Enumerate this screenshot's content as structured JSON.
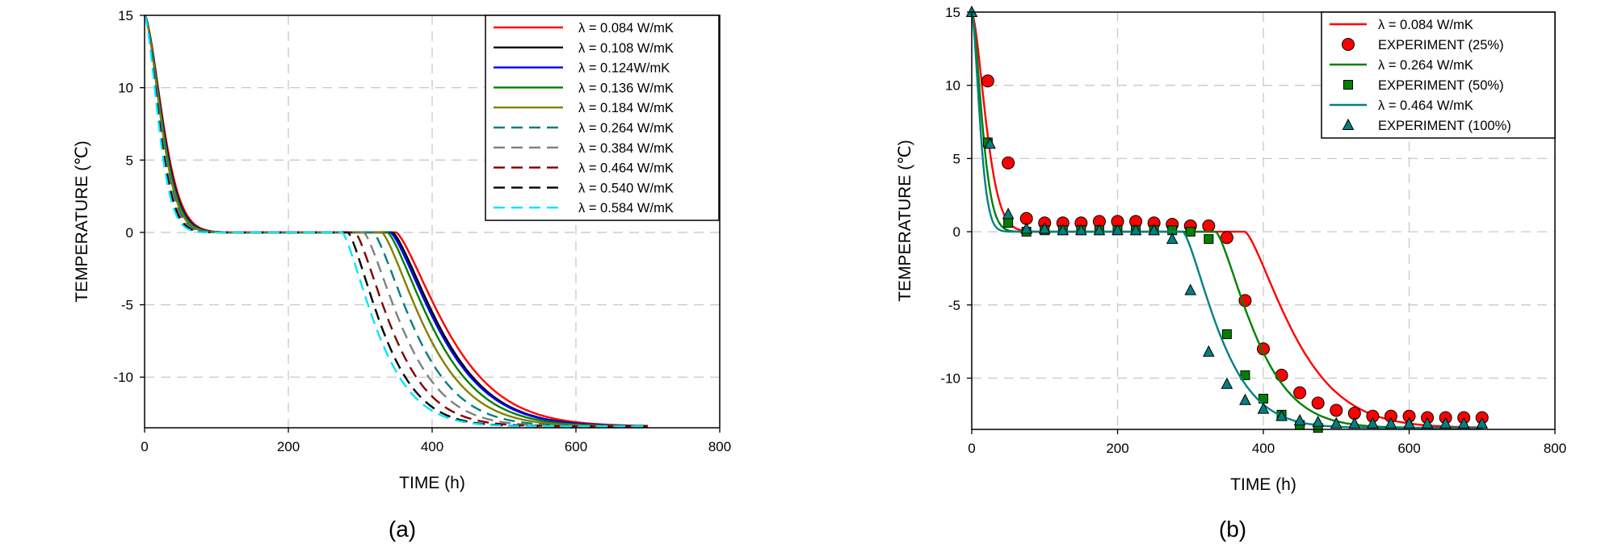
{
  "chart_data": [
    {
      "type": "line",
      "panel_label": "(a)",
      "xlabel": "TIME (h)",
      "ylabel": "TEMPERATURE (℃)",
      "xlim": [
        0,
        800
      ],
      "ylim": [
        -13.5,
        15
      ],
      "x_ticks": [
        0,
        200,
        400,
        600,
        800
      ],
      "y_ticks": [
        15,
        10,
        5,
        0,
        -5,
        -10
      ],
      "grid": true,
      "legend_position": "top-right",
      "series": [
        {
          "name": "λ = 0.084 W/mK",
          "color": "#ff0000",
          "dash": "solid",
          "params": {
            "t_freeze": 350,
            "tau_down": 60,
            "k_cool": 22
          }
        },
        {
          "name": "λ = 0.108 W/mK",
          "color": "#000000",
          "dash": "solid",
          "params": {
            "t_freeze": 345,
            "tau_down": 58,
            "k_cool": 21
          }
        },
        {
          "name": "λ = 0.124W/mK",
          "color": "#0000ff",
          "dash": "solid",
          "params": {
            "t_freeze": 342,
            "tau_down": 57,
            "k_cool": 21
          }
        },
        {
          "name": "λ = 0.136 W/mK",
          "color": "#008000",
          "dash": "solid",
          "params": {
            "t_freeze": 338,
            "tau_down": 56,
            "k_cool": 20
          }
        },
        {
          "name": "λ = 0.184 W/mK",
          "color": "#808000",
          "dash": "solid",
          "params": {
            "t_freeze": 330,
            "tau_down": 54,
            "k_cool": 19
          }
        },
        {
          "name": "λ = 0.264 W/mK",
          "color": "#008080",
          "dash": "dashed",
          "params": {
            "t_freeze": 318,
            "tau_down": 52,
            "k_cool": 18
          }
        },
        {
          "name": "λ = 0.384 W/mK",
          "color": "#808080",
          "dash": "dashed",
          "params": {
            "t_freeze": 305,
            "tau_down": 50,
            "k_cool": 17
          }
        },
        {
          "name": "λ = 0.464 W/mK",
          "color": "#800000",
          "dash": "dashed",
          "params": {
            "t_freeze": 293,
            "tau_down": 48,
            "k_cool": 16
          }
        },
        {
          "name": "λ = 0.540 W/mK",
          "color": "#000000",
          "dash": "dashed",
          "params": {
            "t_freeze": 283,
            "tau_down": 47,
            "k_cool": 15
          }
        },
        {
          "name": "λ = 0.584 W/mK",
          "color": "#00e5ff",
          "dash": "dashed",
          "params": {
            "t_freeze": 275,
            "tau_down": 45,
            "k_cool": 15
          }
        }
      ]
    },
    {
      "type": "line",
      "panel_label": "(b)",
      "xlabel": "TIME (h)",
      "ylabel": "TEMPERATURE (℃)",
      "xlim": [
        0,
        800
      ],
      "ylim": [
        -13.5,
        15
      ],
      "x_ticks": [
        0,
        200,
        400,
        600,
        800
      ],
      "y_ticks": [
        15,
        10,
        5,
        0,
        -5,
        -10
      ],
      "grid": true,
      "legend_position": "top-right",
      "series": [
        {
          "name": "λ = 0.084 W/mK",
          "color": "#ff0000",
          "kind": "line",
          "params": {
            "t_freeze": 375,
            "tau_down": 45,
            "k_cool": 20
          }
        },
        {
          "name": "EXPERIMENT (25%)",
          "color": "#ff0000",
          "kind": "marker",
          "marker": "circle",
          "x": [
            22,
            50,
            75,
            100,
            125,
            150,
            175,
            200,
            225,
            250,
            275,
            300,
            325,
            350,
            375,
            400,
            425,
            450,
            475,
            500,
            525,
            550,
            575,
            600,
            625,
            650,
            675,
            700
          ],
          "y": [
            10.3,
            4.7,
            0.9,
            0.6,
            0.6,
            0.6,
            0.7,
            0.7,
            0.7,
            0.6,
            0.5,
            0.4,
            0.4,
            -0.4,
            -4.7,
            -8.0,
            -9.8,
            -11.0,
            -11.7,
            -12.2,
            -12.4,
            -12.6,
            -12.6,
            -12.6,
            -12.7,
            -12.7,
            -12.7,
            -12.7
          ]
        },
        {
          "name": "λ = 0.264 W/mK",
          "color": "#008000",
          "kind": "line",
          "params": {
            "t_freeze": 335,
            "tau_down": 33,
            "k_cool": 16
          }
        },
        {
          "name": "EXPERIMENT (50%)",
          "color": "#008000",
          "kind": "marker",
          "marker": "square",
          "x": [
            22,
            50,
            75,
            100,
            125,
            150,
            175,
            200,
            225,
            250,
            275,
            300,
            325,
            350,
            375,
            400,
            425,
            450,
            475
          ],
          "y": [
            6.1,
            0.6,
            0.0,
            0.1,
            0.1,
            0.1,
            0.1,
            0.1,
            0.1,
            0.1,
            0.1,
            0.0,
            -0.5,
            -7.0,
            -9.8,
            -11.4,
            -12.5,
            -13.2,
            -13.4
          ]
        },
        {
          "name": "λ = 0.464 W/mK",
          "color": "#008080",
          "kind": "line",
          "params": {
            "t_freeze": 290,
            "tau_down": 26,
            "k_cool": 15
          }
        },
        {
          "name": "EXPERIMENT (100%)",
          "color": "#008080",
          "kind": "marker",
          "marker": "triangle",
          "x": [
            0,
            25,
            50,
            75,
            100,
            125,
            150,
            175,
            200,
            225,
            250,
            275,
            300,
            325,
            350,
            375,
            400,
            425,
            450,
            475,
            500,
            525,
            550,
            575,
            600,
            625,
            650,
            675,
            700
          ],
          "y": [
            15.0,
            6.0,
            1.2,
            0.2,
            0.2,
            0.1,
            0.1,
            0.1,
            0.1,
            0.1,
            0.1,
            -0.5,
            -4.0,
            -8.2,
            -10.4,
            -11.5,
            -12.1,
            -12.6,
            -12.9,
            -13.0,
            -13.1,
            -13.1,
            -13.1,
            -13.1,
            -13.1,
            -13.1,
            -13.1,
            -13.1,
            -13.1
          ]
        }
      ]
    }
  ]
}
